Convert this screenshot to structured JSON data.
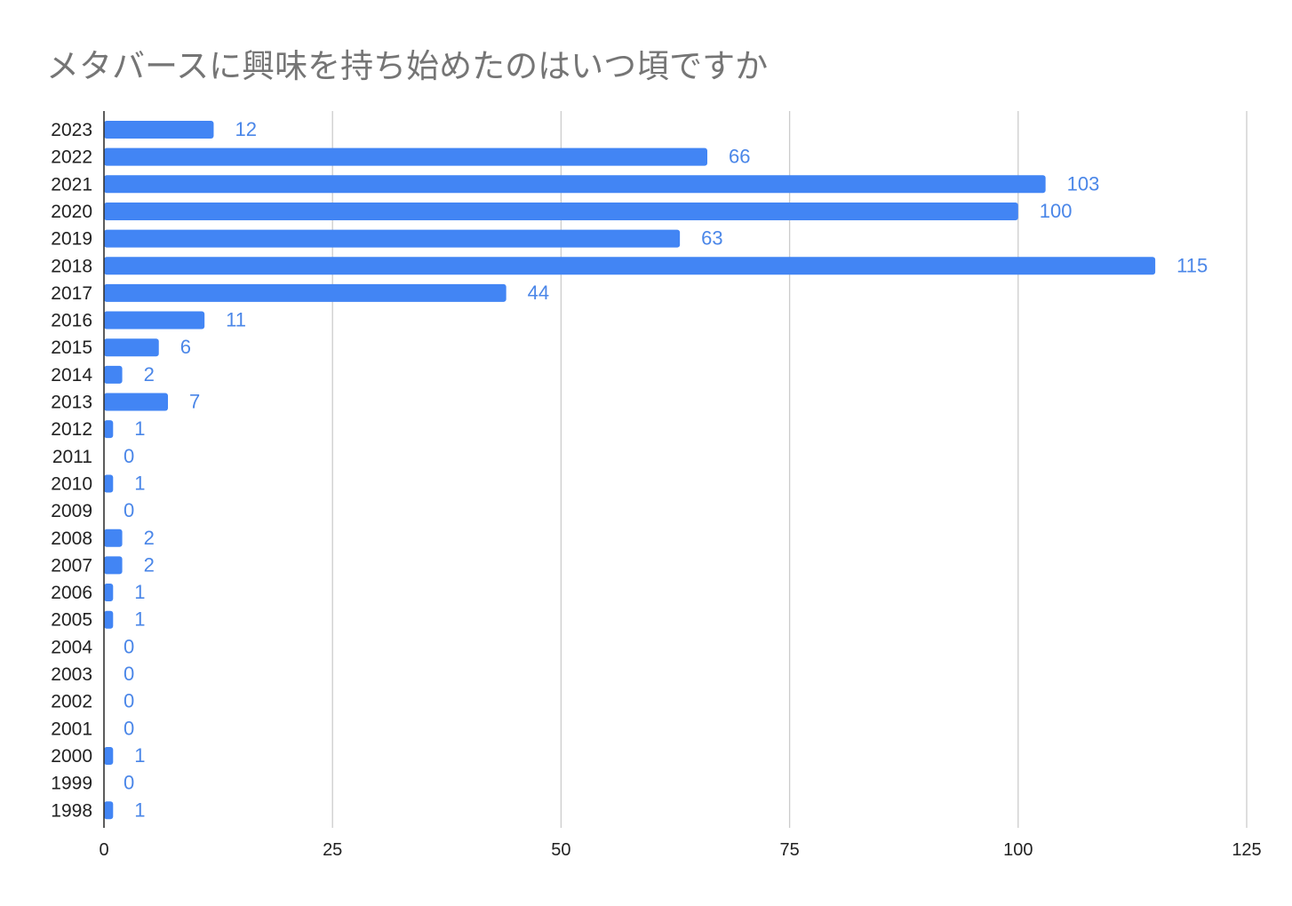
{
  "chart_data": {
    "type": "bar",
    "orientation": "horizontal",
    "title": "メタバースに興味を持ち始めたのはいつ頃ですか",
    "xlabel": "",
    "ylabel": "",
    "categories": [
      "2023",
      "2022",
      "2021",
      "2020",
      "2019",
      "2018",
      "2017",
      "2016",
      "2015",
      "2014",
      "2013",
      "2012",
      "2011",
      "2010",
      "2009",
      "2008",
      "2007",
      "2006",
      "2005",
      "2004",
      "2003",
      "2002",
      "2001",
      "2000",
      "1999",
      "1998"
    ],
    "values": [
      12,
      66,
      103,
      100,
      63,
      115,
      44,
      11,
      6,
      2,
      7,
      1,
      0,
      1,
      0,
      2,
      2,
      1,
      1,
      0,
      0,
      0,
      0,
      1,
      0,
      1
    ],
    "xlim": [
      0,
      125
    ],
    "xticks": [
      0,
      25,
      50,
      75,
      100,
      125
    ],
    "grid": true,
    "data_labels": true,
    "legend": "none",
    "colors": {
      "bar": "#4285f4",
      "label": "#4a86e8",
      "grid": "#cccccc",
      "axis": "#333333",
      "title": "#757575"
    }
  }
}
